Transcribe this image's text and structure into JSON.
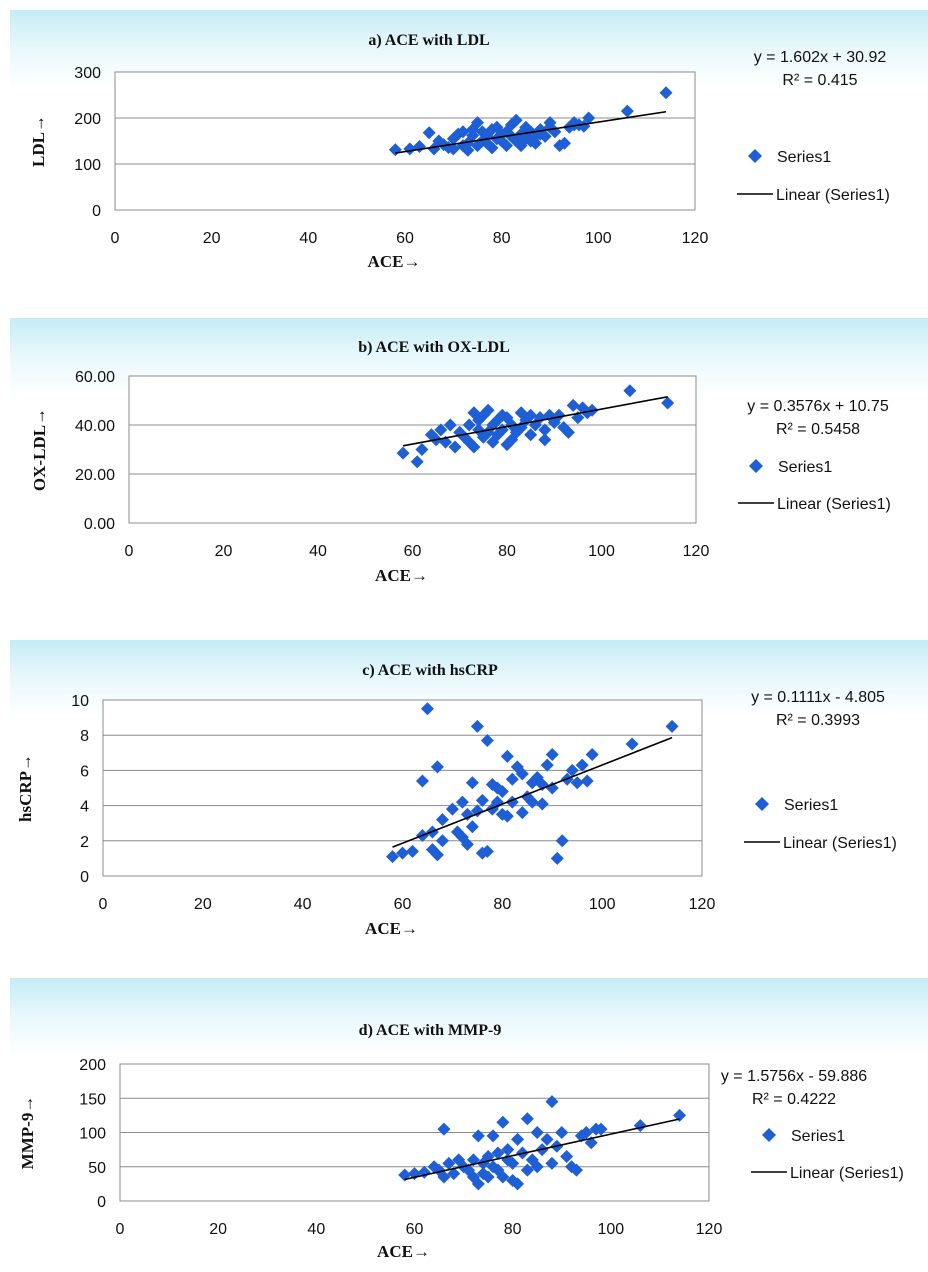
{
  "chart_data": [
    {
      "type": "scatter",
      "title": "a) ACE with LDL",
      "xlabel": "ACE→",
      "ylabel": "LDL→",
      "xlim": [
        0,
        120
      ],
      "ylim": [
        0,
        300
      ],
      "xticks": [
        "0",
        "20",
        "40",
        "60",
        "80",
        "100",
        "120"
      ],
      "yticks": [
        "0",
        "100",
        "200",
        "300"
      ],
      "grid": "horizontal",
      "legend": "right",
      "equation": "y = 1.602x + 30.92",
      "r2": "R² = 0.415",
      "trendline": {
        "name": "Linear (Series1)",
        "slope": 1.602,
        "intercept": 30.92,
        "x_range": [
          58,
          114
        ]
      },
      "series": [
        {
          "name": "Series1",
          "color": "#1f5fd6",
          "x": [
            58,
            61,
            63,
            65,
            66,
            67,
            68,
            69,
            70,
            70,
            71,
            72,
            72,
            73,
            73,
            74,
            74,
            75,
            75,
            76,
            76,
            77,
            77,
            78,
            78,
            79,
            79,
            80,
            80,
            81,
            81,
            82,
            82,
            83,
            83,
            84,
            84,
            85,
            85,
            86,
            86,
            87,
            87,
            88,
            88,
            89,
            90,
            90,
            91,
            92,
            93,
            94,
            95,
            95,
            96,
            97,
            98,
            106,
            114
          ],
          "y": [
            131,
            133,
            138,
            168,
            133,
            150,
            142,
            136,
            155,
            133,
            165,
            140,
            170,
            130,
            145,
            162,
            175,
            190,
            140,
            150,
            170,
            160,
            145,
            175,
            135,
            155,
            180,
            150,
            165,
            170,
            140,
            160,
            185,
            195,
            150,
            140,
            165,
            155,
            180,
            150,
            170,
            160,
            145,
            175,
            165,
            160,
            180,
            190,
            170,
            140,
            145,
            180,
            185,
            190,
            185,
            182,
            200,
            215,
            255
          ]
        }
      ]
    },
    {
      "type": "scatter",
      "title": "b) ACE with OX-LDL",
      "xlabel": "ACE→",
      "ylabel": "OX-LDL→",
      "xlim": [
        0,
        120
      ],
      "ylim": [
        0,
        60
      ],
      "xticks": [
        "0",
        "20",
        "40",
        "60",
        "80",
        "100",
        "120"
      ],
      "yticks": [
        "0.00",
        "20.00",
        "40.00",
        "60.00"
      ],
      "grid": "horizontal",
      "legend": "right",
      "equation": "y = 0.3576x + 10.75",
      "r2": "R² = 0.5458",
      "trendline": {
        "name": "Linear (Series1)",
        "slope": 0.3576,
        "intercept": 10.75,
        "x_range": [
          58,
          114
        ]
      },
      "series": [
        {
          "name": "Series1",
          "color": "#1f5fd6",
          "x": [
            58,
            61,
            62,
            64,
            65,
            66,
            67,
            68,
            69,
            70,
            71,
            72,
            72,
            73,
            73,
            74,
            74,
            75,
            75,
            76,
            76,
            77,
            77,
            78,
            78,
            79,
            79,
            80,
            80,
            81,
            81,
            82,
            83,
            83,
            84,
            85,
            85,
            86,
            87,
            88,
            88,
            89,
            90,
            91,
            92,
            93,
            94,
            95,
            96,
            97,
            98,
            106,
            114
          ],
          "y": [
            28.5,
            25,
            30,
            36,
            34,
            38,
            33,
            40,
            31,
            37,
            35,
            40,
            33,
            45,
            31,
            38,
            42,
            35,
            44,
            37,
            46,
            40,
            33,
            42,
            36,
            44,
            38,
            32,
            43,
            34,
            40,
            37,
            45,
            39,
            42,
            36,
            44,
            40,
            43,
            34,
            38,
            44,
            41,
            44,
            39,
            37,
            48,
            43,
            47,
            45,
            46,
            54,
            49
          ]
        }
      ]
    },
    {
      "type": "scatter",
      "title": "c) ACE with hsCRP",
      "xlabel": "ACE→",
      "ylabel": "hsCRP→",
      "xlim": [
        0,
        120
      ],
      "ylim": [
        0,
        10
      ],
      "xticks": [
        "0",
        "20",
        "40",
        "60",
        "80",
        "100",
        "120"
      ],
      "yticks": [
        "0",
        "2",
        "4",
        "6",
        "8",
        "10"
      ],
      "grid": "horizontal",
      "legend": "right",
      "equation": "y = 0.1111x - 4.805",
      "r2": "R² = 0.3993",
      "trendline": {
        "name": "Linear (Series1)",
        "slope": 0.1111,
        "intercept": -4.805,
        "x_range": [
          58,
          114
        ]
      },
      "series": [
        {
          "name": "Series1",
          "color": "#1f5fd6",
          "x": [
            58,
            60,
            62,
            64,
            64,
            65,
            66,
            66,
            67,
            67,
            68,
            68,
            70,
            71,
            72,
            72,
            73,
            73,
            74,
            74,
            75,
            75,
            76,
            76,
            77,
            77,
            78,
            78,
            79,
            79,
            80,
            80,
            81,
            81,
            82,
            82,
            83,
            84,
            84,
            85,
            86,
            86,
            87,
            88,
            88,
            89,
            90,
            90,
            91,
            92,
            93,
            94,
            95,
            96,
            97,
            98,
            106,
            114
          ],
          "y": [
            1.1,
            1.3,
            1.4,
            5.4,
            2.3,
            9.5,
            1.5,
            2.5,
            6.2,
            1.2,
            3.2,
            2.0,
            3.8,
            2.5,
            4.2,
            2.2,
            3.5,
            1.8,
            5.3,
            2.8,
            8.5,
            3.7,
            4.3,
            1.3,
            7.7,
            1.4,
            5.2,
            3.8,
            5.0,
            4.2,
            3.5,
            4.8,
            6.8,
            3.4,
            5.5,
            4.2,
            6.2,
            3.6,
            5.8,
            4.5,
            5.3,
            4.2,
            5.6,
            4.1,
            5.2,
            6.3,
            6.9,
            5.0,
            1.0,
            2.0,
            5.5,
            6.0,
            5.3,
            6.3,
            5.4,
            6.9,
            7.5,
            8.5
          ]
        }
      ]
    },
    {
      "type": "scatter",
      "title": "d) ACE with MMP-9",
      "xlabel": "ACE→",
      "ylabel": "MMP-9→",
      "xlim": [
        0,
        120
      ],
      "ylim": [
        0,
        200
      ],
      "xticks": [
        "0",
        "20",
        "40",
        "60",
        "80",
        "100",
        "120"
      ],
      "yticks": [
        "0",
        "50",
        "100",
        "150",
        "200"
      ],
      "grid": "horizontal",
      "legend": "right",
      "equation": "y = 1.5756x - 59.886",
      "r2": "R² = 0.4222",
      "trendline": {
        "name": "Linear (Series1)",
        "slope": 1.5756,
        "intercept": -59.886,
        "x_range": [
          58,
          114
        ]
      },
      "series": [
        {
          "name": "Series1",
          "color": "#1f5fd6",
          "x": [
            58,
            60,
            62,
            64,
            65,
            66,
            66,
            67,
            68,
            69,
            70,
            71,
            72,
            72,
            73,
            73,
            74,
            74,
            75,
            75,
            76,
            76,
            77,
            77,
            78,
            78,
            79,
            79,
            80,
            80,
            81,
            81,
            82,
            83,
            83,
            84,
            85,
            85,
            86,
            87,
            88,
            88,
            89,
            90,
            91,
            92,
            93,
            94,
            95,
            96,
            97,
            98,
            106,
            114
          ],
          "y": [
            38,
            40,
            42,
            50,
            45,
            105,
            35,
            55,
            40,
            60,
            50,
            45,
            60,
            35,
            95,
            25,
            55,
            40,
            65,
            35,
            95,
            50,
            70,
            45,
            115,
            35,
            60,
            75,
            30,
            55,
            90,
            25,
            70,
            120,
            45,
            60,
            100,
            50,
            75,
            90,
            145,
            55,
            80,
            100,
            65,
            50,
            45,
            95,
            100,
            85,
            105,
            105,
            110,
            125
          ]
        }
      ]
    }
  ]
}
